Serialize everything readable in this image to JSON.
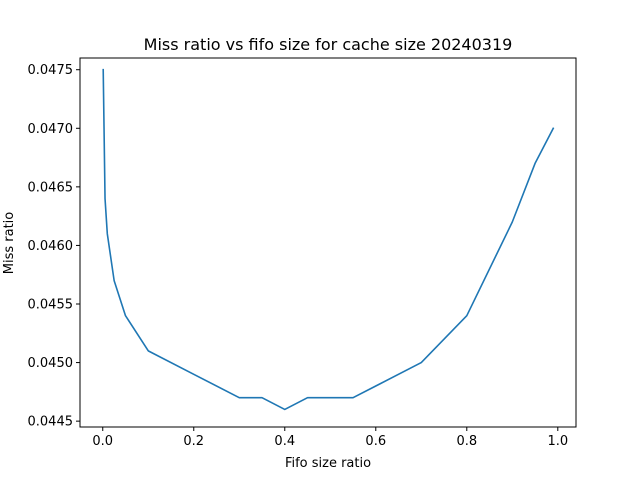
{
  "chart_data": {
    "type": "line",
    "title": "Miss ratio vs fifo size for cache size 20240319",
    "xlabel": "Fifo size ratio",
    "ylabel": "Miss ratio",
    "xlim": [
      -0.05,
      1.04
    ],
    "ylim": [
      0.04445,
      0.0476
    ],
    "xticks": [
      0.0,
      0.2,
      0.4,
      0.6,
      0.8,
      1.0
    ],
    "xtick_labels": [
      "0.0",
      "0.2",
      "0.4",
      "0.6",
      "0.8",
      "1.0"
    ],
    "yticks": [
      0.0445,
      0.045,
      0.0455,
      0.046,
      0.0465,
      0.047,
      0.0475
    ],
    "ytick_labels": [
      "0.0445",
      "0.0450",
      "0.0455",
      "0.0460",
      "0.0465",
      "0.0470",
      "0.0475"
    ],
    "grid": false,
    "series": [
      {
        "color": "#1f77b4",
        "x": [
          0.001,
          0.005,
          0.01,
          0.025,
          0.05,
          0.1,
          0.2,
          0.3,
          0.35,
          0.4,
          0.45,
          0.5,
          0.55,
          0.6,
          0.7,
          0.8,
          0.9,
          0.95,
          0.99
        ],
        "y": [
          0.0475,
          0.0464,
          0.0461,
          0.0457,
          0.0454,
          0.0451,
          0.0449,
          0.0447,
          0.0447,
          0.0446,
          0.0447,
          0.0447,
          0.0447,
          0.0448,
          0.045,
          0.0454,
          0.0462,
          0.0467,
          0.047
        ]
      }
    ]
  }
}
